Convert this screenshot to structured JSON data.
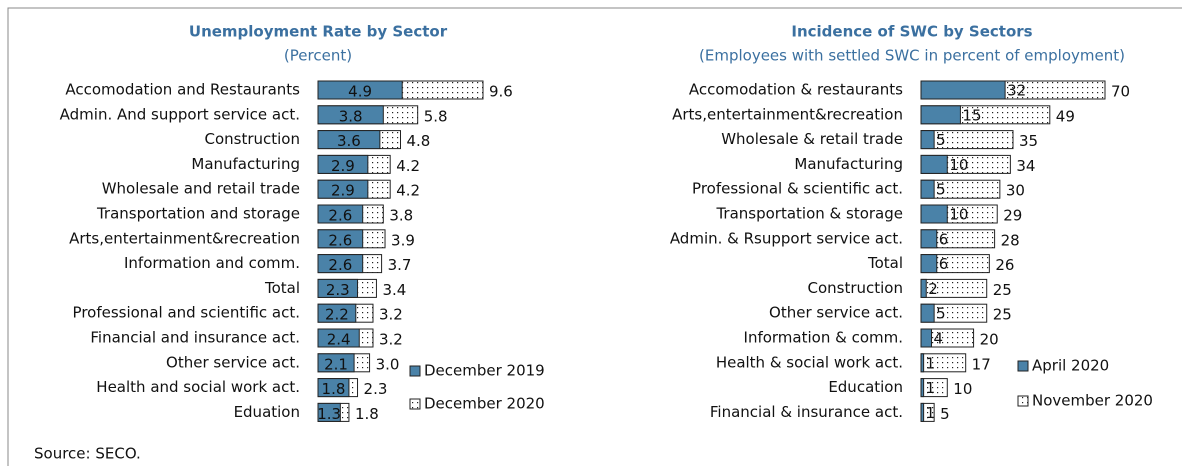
{
  "chart_data": [
    {
      "type": "bar",
      "title": "Unemployment Rate by Sector",
      "subtitle": "(Percent)",
      "categories": [
        "Accomodation and Restaurants",
        "Admin. And support service act.",
        "Construction",
        "Manufacturing",
        "Wholesale and retail trade",
        "Transportation and storage",
        "Arts,entertainment&recreation",
        "Information and comm.",
        "Total",
        "Professional and scientific act.",
        "Financial and insurance act.",
        "Other service act.",
        "Health and social work act.",
        "Eduation"
      ],
      "series": [
        {
          "name": "December 2019",
          "color": "#4a82a8",
          "values": [
            4.9,
            3.8,
            3.6,
            2.9,
            2.9,
            2.6,
            2.6,
            2.6,
            2.3,
            2.2,
            2.4,
            2.1,
            1.8,
            1.3
          ]
        },
        {
          "name": "December 2020",
          "color": "#ffffff",
          "values": [
            9.6,
            5.8,
            4.8,
            4.2,
            4.2,
            3.8,
            3.9,
            3.7,
            3.4,
            3.2,
            3.2,
            3.0,
            2.3,
            1.8
          ],
          "value_labels": [
            "9.6",
            "5.8",
            "4.8",
            "4.2",
            "4.2",
            "3.8",
            "3.9",
            "3.7",
            "3.4",
            "3.2",
            "3.2",
            "3.0",
            "2.3",
            "1.8"
          ]
        }
      ]
    },
    {
      "type": "bar",
      "title": "Incidence of SWC by Sectors",
      "subtitle": "(Employees with settled SWC in percent of employment)",
      "categories": [
        "Accomodation & restaurants",
        "Arts,entertainment&recreation",
        "Wholesale & retail trade",
        "Manufacturing",
        "Professional & scientific act.",
        "Transportation & storage",
        "Admin. & Rsupport service act.",
        "Total",
        "Construction",
        "Other service act.",
        "Information & comm.",
        "Health & social work act.",
        "Education",
        "Financial & insurance act."
      ],
      "series": [
        {
          "name": "April 2020",
          "color": "#4a82a8",
          "values": [
            32,
            15,
            5,
            10,
            5,
            10,
            6,
            6,
            2,
            5,
            4,
            1,
            1,
            1
          ]
        },
        {
          "name": "November 2020",
          "color": "#ffffff",
          "values": [
            70,
            49,
            35,
            34,
            30,
            29,
            28,
            26,
            25,
            25,
            20,
            17,
            10,
            5
          ]
        }
      ]
    }
  ],
  "source": "Source: SECO."
}
